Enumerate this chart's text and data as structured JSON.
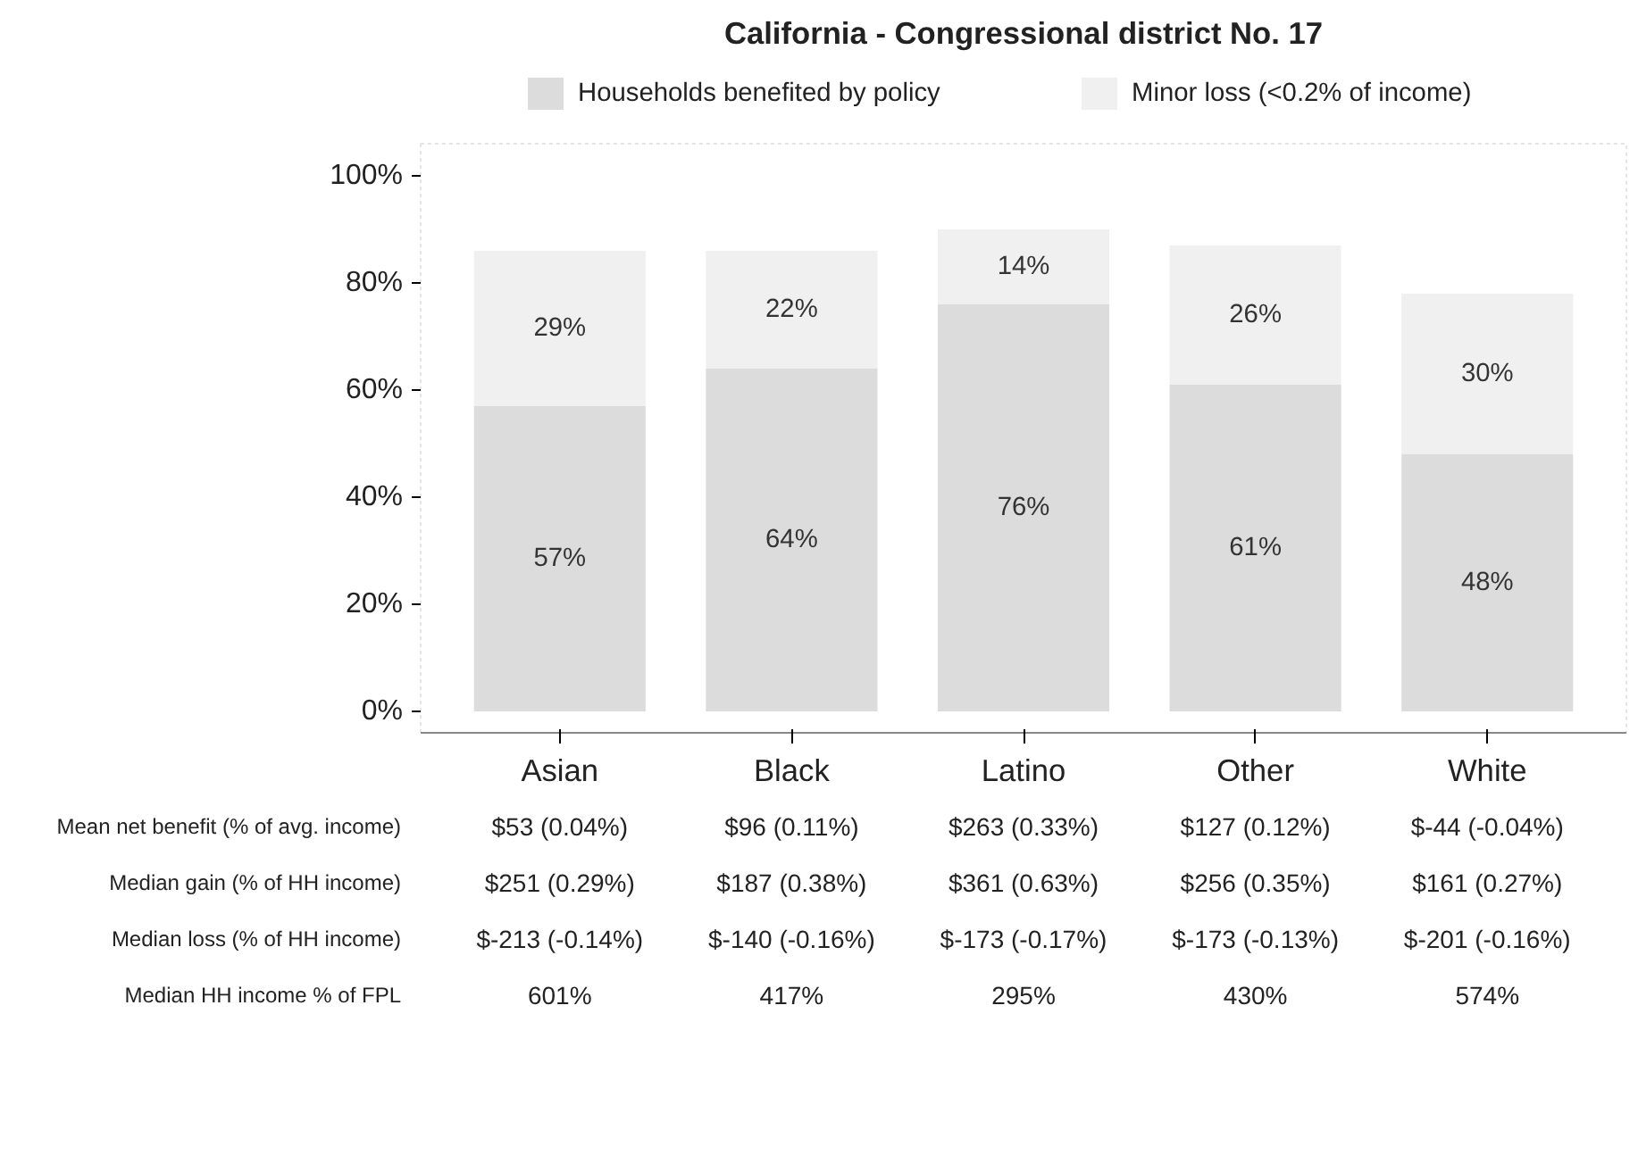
{
  "chart_data": {
    "type": "bar",
    "title": "California - Congressional district No. 17",
    "stacked": true,
    "categories": [
      "Asian",
      "Black",
      "Latino",
      "Other",
      "White"
    ],
    "series": [
      {
        "name": "Households benefited by policy",
        "color": "#dcdcdc",
        "values": [
          57,
          64,
          76,
          61,
          48
        ],
        "value_labels": [
          "57%",
          "64%",
          "76%",
          "61%",
          "48%"
        ]
      },
      {
        "name": "Minor loss (<0.2% of income)",
        "color": "#f0f0f0",
        "values": [
          29,
          22,
          14,
          26,
          30
        ],
        "value_labels": [
          "29%",
          "22%",
          "14%",
          "26%",
          "30%"
        ]
      }
    ],
    "ylim": [
      -4,
      106
    ],
    "yticks": [
      {
        "value": 0,
        "label": "0%"
      },
      {
        "value": 20,
        "label": "20%"
      },
      {
        "value": 40,
        "label": "40%"
      },
      {
        "value": 60,
        "label": "60%"
      },
      {
        "value": 80,
        "label": "80%"
      },
      {
        "value": 100,
        "label": "100%"
      }
    ],
    "grid": false,
    "legend": "top",
    "annotations": [
      "Mean net benefit (% of avg. income)",
      "$53 (0.04%)",
      "$96 (0.11%)",
      "$263 (0.33%)",
      "$127 (0.12%)",
      "$-44 (-0.04%)",
      "Median gain (% of HH income)",
      "$251 (0.29%)",
      "$187 (0.38%)",
      "$361 (0.63%)",
      "$256 (0.35%)",
      "$161 (0.27%)",
      "Median loss (% of HH income)",
      "$-213 (-0.14%)",
      "$-140 (-0.16%)",
      "$-173 (-0.17%)",
      "$-173 (-0.13%)",
      "$-201 (-0.16%)",
      "Median HH income % of FPL",
      "601%",
      "417%",
      "295%",
      "430%",
      "574%"
    ]
  }
}
